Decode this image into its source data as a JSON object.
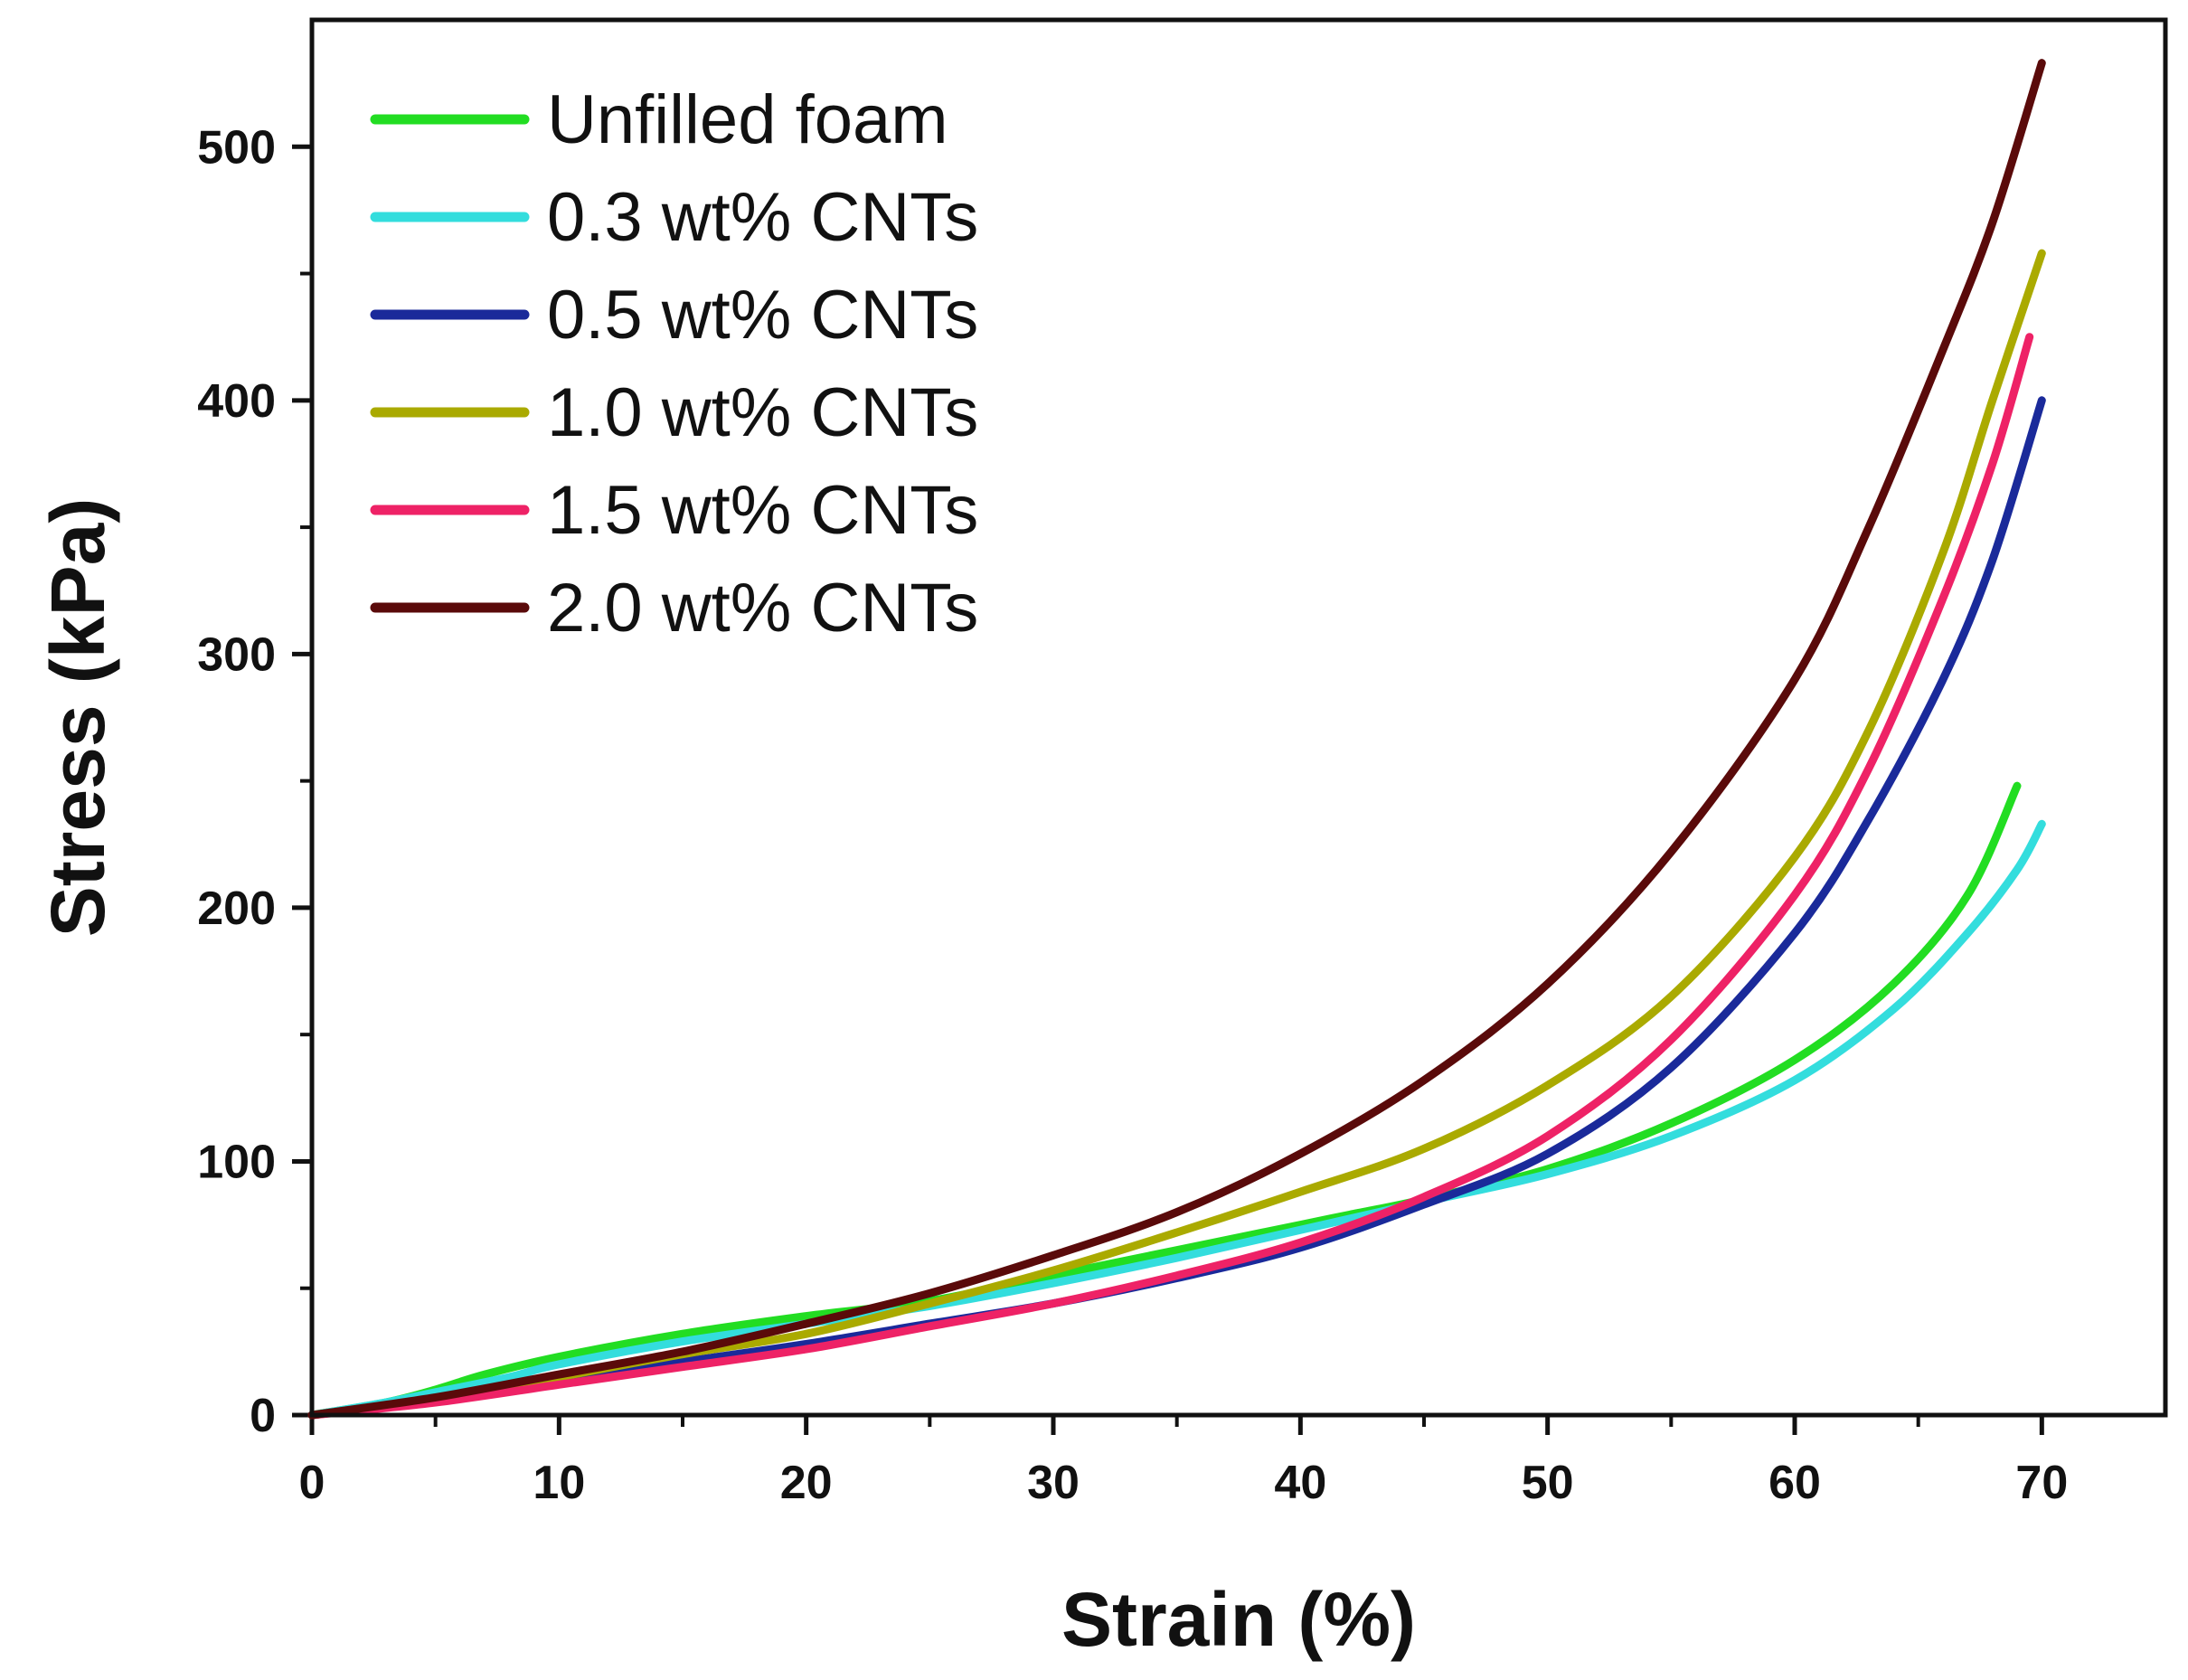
{
  "chart_data": {
    "type": "line",
    "title": "",
    "xlabel": "Strain (%)",
    "ylabel": "Stress (kPa)",
    "xlim": [
      0,
      75
    ],
    "ylim": [
      0,
      550
    ],
    "xticks": [
      0,
      10,
      20,
      30,
      40,
      50,
      60,
      70
    ],
    "yticks": [
      0,
      100,
      200,
      300,
      400,
      500
    ],
    "grid": false,
    "legend_position": "top-left",
    "series": [
      {
        "name": "Unfilled foam",
        "color": "#22dd22",
        "points": [
          [
            0,
            0
          ],
          [
            3,
            5
          ],
          [
            5,
            10
          ],
          [
            7,
            16
          ],
          [
            10,
            23
          ],
          [
            15,
            32
          ],
          [
            20,
            39
          ],
          [
            25,
            45
          ],
          [
            30,
            55
          ],
          [
            35,
            65
          ],
          [
            40,
            75
          ],
          [
            42,
            79
          ],
          [
            45,
            85
          ],
          [
            50,
            97
          ],
          [
            55,
            115
          ],
          [
            60,
            140
          ],
          [
            64,
            170
          ],
          [
            67,
            205
          ],
          [
            69,
            248
          ]
        ]
      },
      {
        "name": "0.3 wt% CNTs",
        "color": "#33dddd",
        "points": [
          [
            0,
            0
          ],
          [
            3,
            5
          ],
          [
            5,
            9
          ],
          [
            8,
            15
          ],
          [
            10,
            20
          ],
          [
            15,
            29
          ],
          [
            20,
            36
          ],
          [
            25,
            43
          ],
          [
            30,
            52
          ],
          [
            35,
            62
          ],
          [
            40,
            73
          ],
          [
            45,
            84
          ],
          [
            50,
            95
          ],
          [
            55,
            110
          ],
          [
            60,
            132
          ],
          [
            64,
            160
          ],
          [
            67,
            190
          ],
          [
            69,
            215
          ],
          [
            70,
            233
          ]
        ]
      },
      {
        "name": "0.5 wt% CNTs",
        "color": "#1a2a9a",
        "points": [
          [
            0,
            0
          ],
          [
            5,
            6
          ],
          [
            10,
            14
          ],
          [
            15,
            21
          ],
          [
            20,
            28
          ],
          [
            25,
            36
          ],
          [
            30,
            44
          ],
          [
            35,
            54
          ],
          [
            40,
            66
          ],
          [
            45,
            83
          ],
          [
            50,
            103
          ],
          [
            55,
            137
          ],
          [
            60,
            190
          ],
          [
            63,
            235
          ],
          [
            66,
            290
          ],
          [
            68,
            337
          ],
          [
            70,
            400
          ]
        ]
      },
      {
        "name": "1.0 wt% CNTs",
        "color": "#aaaa00",
        "points": [
          [
            0,
            0
          ],
          [
            5,
            6
          ],
          [
            10,
            15
          ],
          [
            15,
            24
          ],
          [
            20,
            32
          ],
          [
            25,
            44
          ],
          [
            30,
            57
          ],
          [
            35,
            72
          ],
          [
            40,
            88
          ],
          [
            45,
            105
          ],
          [
            50,
            130
          ],
          [
            55,
            165
          ],
          [
            60,
            220
          ],
          [
            63,
            270
          ],
          [
            66,
            340
          ],
          [
            68,
            400
          ],
          [
            70,
            458
          ]
        ]
      },
      {
        "name": "1.5 wt% CNTs",
        "color": "#ee2266",
        "points": [
          [
            0,
            0
          ],
          [
            5,
            5
          ],
          [
            10,
            12
          ],
          [
            15,
            19
          ],
          [
            20,
            26
          ],
          [
            25,
            35
          ],
          [
            30,
            44
          ],
          [
            35,
            55
          ],
          [
            40,
            68
          ],
          [
            45,
            86
          ],
          [
            50,
            110
          ],
          [
            55,
            148
          ],
          [
            60,
            205
          ],
          [
            63,
            255
          ],
          [
            66,
            322
          ],
          [
            68,
            375
          ],
          [
            69.5,
            425
          ]
        ]
      },
      {
        "name": "2.0 wt% CNTs",
        "color": "#5a0a0a",
        "points": [
          [
            0,
            0
          ],
          [
            5,
            7
          ],
          [
            10,
            16
          ],
          [
            15,
            25
          ],
          [
            20,
            36
          ],
          [
            25,
            48
          ],
          [
            30,
            63
          ],
          [
            35,
            80
          ],
          [
            40,
            103
          ],
          [
            45,
            132
          ],
          [
            50,
            170
          ],
          [
            55,
            222
          ],
          [
            60,
            290
          ],
          [
            63,
            350
          ],
          [
            66,
            420
          ],
          [
            68,
            470
          ],
          [
            70,
            533
          ]
        ]
      }
    ]
  }
}
